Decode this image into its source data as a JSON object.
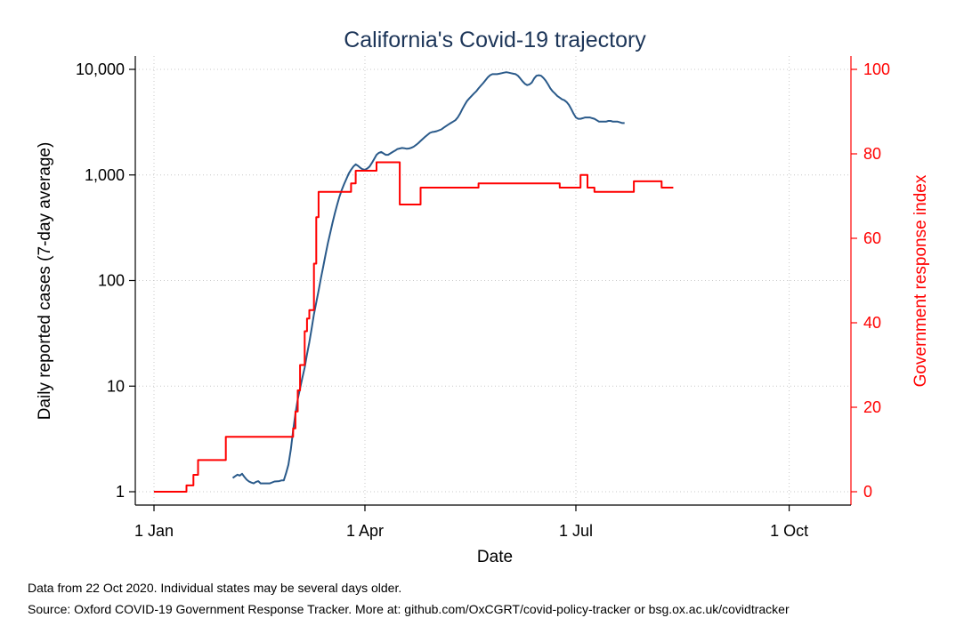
{
  "chart_data": {
    "type": "line",
    "title": "California's Covid-19 trajectory",
    "xlabel": "Date",
    "ylabel": "Daily reported cases (7-day average)",
    "y2label": "Government response index",
    "x_ticks": [
      {
        "label": "1 Jan",
        "day": 0
      },
      {
        "label": "1 Apr",
        "day": 91
      },
      {
        "label": "1 Jul",
        "day": 182
      },
      {
        "label": "1 Oct",
        "day": 274
      }
    ],
    "xlim_days": [
      0,
      295
    ],
    "y_scale": "log",
    "ylim": [
      1,
      10000
    ],
    "y_ticks": [
      "1",
      "10",
      "100",
      "1,000",
      "10,000"
    ],
    "y2lim": [
      0,
      100
    ],
    "y2_ticks": [
      "0",
      "20",
      "40",
      "60",
      "80",
      "100"
    ],
    "grid": true,
    "series": [
      {
        "name": "Daily reported cases (7-day average)",
        "axis": "left",
        "color": "#2a5a8a",
        "points": [
          [
            34,
            1.35
          ],
          [
            35,
            1.4
          ],
          [
            36,
            1.45
          ],
          [
            37,
            1.42
          ],
          [
            38,
            1.48
          ],
          [
            39,
            1.38
          ],
          [
            40,
            1.3
          ],
          [
            41,
            1.25
          ],
          [
            42,
            1.22
          ],
          [
            43,
            1.2
          ],
          [
            44,
            1.24
          ],
          [
            45,
            1.26
          ],
          [
            46,
            1.2
          ],
          [
            48,
            1.2
          ],
          [
            50,
            1.2
          ],
          [
            52,
            1.25
          ],
          [
            54,
            1.26
          ],
          [
            55,
            1.28
          ],
          [
            56,
            1.28
          ],
          [
            57,
            1.5
          ],
          [
            58,
            1.8
          ],
          [
            59,
            2.5
          ],
          [
            60,
            3.8
          ],
          [
            61,
            5.5
          ],
          [
            62,
            7.5
          ],
          [
            63,
            9.5
          ],
          [
            64,
            12
          ],
          [
            65,
            15
          ],
          [
            66,
            20
          ],
          [
            67,
            26
          ],
          [
            68,
            35
          ],
          [
            69,
            48
          ],
          [
            70,
            62
          ],
          [
            71,
            80
          ],
          [
            72,
            105
          ],
          [
            73,
            135
          ],
          [
            74,
            175
          ],
          [
            75,
            225
          ],
          [
            76,
            280
          ],
          [
            77,
            350
          ],
          [
            78,
            430
          ],
          [
            79,
            520
          ],
          [
            80,
            620
          ],
          [
            81,
            720
          ],
          [
            82,
            820
          ],
          [
            83,
            920
          ],
          [
            84,
            1030
          ],
          [
            85,
            1120
          ],
          [
            86,
            1200
          ],
          [
            87,
            1260
          ],
          [
            88,
            1220
          ],
          [
            89,
            1170
          ],
          [
            90,
            1130
          ],
          [
            91,
            1120
          ],
          [
            92,
            1150
          ],
          [
            93,
            1200
          ],
          [
            94,
            1300
          ],
          [
            95,
            1420
          ],
          [
            96,
            1550
          ],
          [
            97,
            1620
          ],
          [
            98,
            1650
          ],
          [
            99,
            1600
          ],
          [
            100,
            1550
          ],
          [
            101,
            1550
          ],
          [
            102,
            1600
          ],
          [
            103,
            1650
          ],
          [
            104,
            1700
          ],
          [
            105,
            1760
          ],
          [
            106,
            1780
          ],
          [
            107,
            1800
          ],
          [
            108,
            1790
          ],
          [
            109,
            1770
          ],
          [
            110,
            1780
          ],
          [
            111,
            1810
          ],
          [
            112,
            1850
          ],
          [
            113,
            1920
          ],
          [
            114,
            2000
          ],
          [
            115,
            2100
          ],
          [
            116,
            2200
          ],
          [
            117,
            2300
          ],
          [
            118,
            2400
          ],
          [
            119,
            2500
          ],
          [
            120,
            2550
          ],
          [
            121,
            2570
          ],
          [
            122,
            2600
          ],
          [
            123,
            2650
          ],
          [
            124,
            2700
          ],
          [
            125,
            2800
          ],
          [
            126,
            2900
          ],
          [
            127,
            3000
          ],
          [
            128,
            3100
          ],
          [
            129,
            3200
          ],
          [
            130,
            3300
          ],
          [
            131,
            3500
          ],
          [
            132,
            3800
          ],
          [
            133,
            4200
          ],
          [
            134,
            4600
          ],
          [
            135,
            5000
          ],
          [
            136,
            5300
          ],
          [
            137,
            5600
          ],
          [
            138,
            5900
          ],
          [
            139,
            6200
          ],
          [
            140,
            6600
          ],
          [
            141,
            7000
          ],
          [
            142,
            7400
          ],
          [
            143,
            7900
          ],
          [
            144,
            8400
          ],
          [
            145,
            8800
          ],
          [
            146,
            9000
          ],
          [
            147,
            9000
          ],
          [
            148,
            9000
          ],
          [
            149,
            9100
          ],
          [
            150,
            9200
          ],
          [
            151,
            9300
          ],
          [
            152,
            9400
          ],
          [
            153,
            9300
          ],
          [
            154,
            9200
          ],
          [
            155,
            9100
          ],
          [
            156,
            9000
          ],
          [
            157,
            8700
          ],
          [
            158,
            8200
          ],
          [
            159,
            7700
          ],
          [
            160,
            7300
          ],
          [
            161,
            7100
          ],
          [
            162,
            7200
          ],
          [
            163,
            7500
          ],
          [
            164,
            8200
          ],
          [
            165,
            8700
          ],
          [
            166,
            8800
          ],
          [
            167,
            8700
          ],
          [
            168,
            8300
          ],
          [
            169,
            7800
          ],
          [
            170,
            7200
          ],
          [
            171,
            6600
          ],
          [
            172,
            6200
          ],
          [
            173,
            5900
          ],
          [
            174,
            5600
          ],
          [
            175,
            5400
          ],
          [
            176,
            5200
          ],
          [
            177,
            5100
          ],
          [
            178,
            4900
          ],
          [
            179,
            4600
          ],
          [
            180,
            4200
          ],
          [
            181,
            3800
          ],
          [
            182,
            3500
          ],
          [
            183,
            3400
          ],
          [
            184,
            3400
          ],
          [
            185,
            3450
          ],
          [
            186,
            3500
          ],
          [
            187,
            3500
          ],
          [
            188,
            3500
          ],
          [
            189,
            3450
          ],
          [
            190,
            3400
          ],
          [
            191,
            3300
          ],
          [
            192,
            3200
          ],
          [
            193,
            3200
          ],
          [
            194,
            3200
          ],
          [
            195,
            3200
          ],
          [
            196,
            3250
          ],
          [
            197,
            3250
          ],
          [
            198,
            3200
          ],
          [
            199,
            3200
          ],
          [
            200,
            3200
          ],
          [
            201,
            3150
          ],
          [
            202,
            3100
          ],
          [
            203,
            3100
          ]
        ]
      },
      {
        "name": "Government response index",
        "axis": "right",
        "color": "#ff0000",
        "points": [
          [
            0,
            0
          ],
          [
            14,
            0
          ],
          [
            14,
            1.5
          ],
          [
            17,
            1.5
          ],
          [
            17,
            4
          ],
          [
            19,
            4
          ],
          [
            19,
            7.5
          ],
          [
            31,
            7.5
          ],
          [
            31,
            13
          ],
          [
            60,
            13
          ],
          [
            60,
            15
          ],
          [
            61,
            15
          ],
          [
            61,
            19
          ],
          [
            62,
            19
          ],
          [
            62,
            24
          ],
          [
            63,
            24
          ],
          [
            63,
            30
          ],
          [
            65,
            30
          ],
          [
            65,
            38
          ],
          [
            66,
            38
          ],
          [
            66,
            41
          ],
          [
            67,
            41
          ],
          [
            67,
            43
          ],
          [
            69,
            43
          ],
          [
            69,
            54
          ],
          [
            70,
            54
          ],
          [
            70,
            65
          ],
          [
            71,
            65
          ],
          [
            71,
            71
          ],
          [
            85,
            71
          ],
          [
            85,
            73
          ],
          [
            87,
            73
          ],
          [
            87,
            76
          ],
          [
            96,
            76
          ],
          [
            96,
            78
          ],
          [
            106,
            78
          ],
          [
            106,
            68
          ],
          [
            115,
            68
          ],
          [
            115,
            72
          ],
          [
            140,
            72
          ],
          [
            140,
            73
          ],
          [
            175,
            73
          ],
          [
            175,
            72
          ],
          [
            184,
            72
          ],
          [
            184,
            75
          ],
          [
            187,
            75
          ],
          [
            187,
            72
          ],
          [
            190,
            72
          ],
          [
            190,
            71
          ],
          [
            207,
            71
          ],
          [
            207,
            73.5
          ],
          [
            219,
            73.5
          ],
          [
            219,
            72
          ],
          [
            224,
            72
          ]
        ]
      }
    ]
  },
  "footnotes": {
    "line1": "Data from 22 Oct 2020. Individual states may be several days older.",
    "line2": "Source: Oxford COVID-19 Government Response Tracker. More at: github.com/OxCGRT/covid-policy-tracker or bsg.ox.ac.uk/covidtracker"
  }
}
